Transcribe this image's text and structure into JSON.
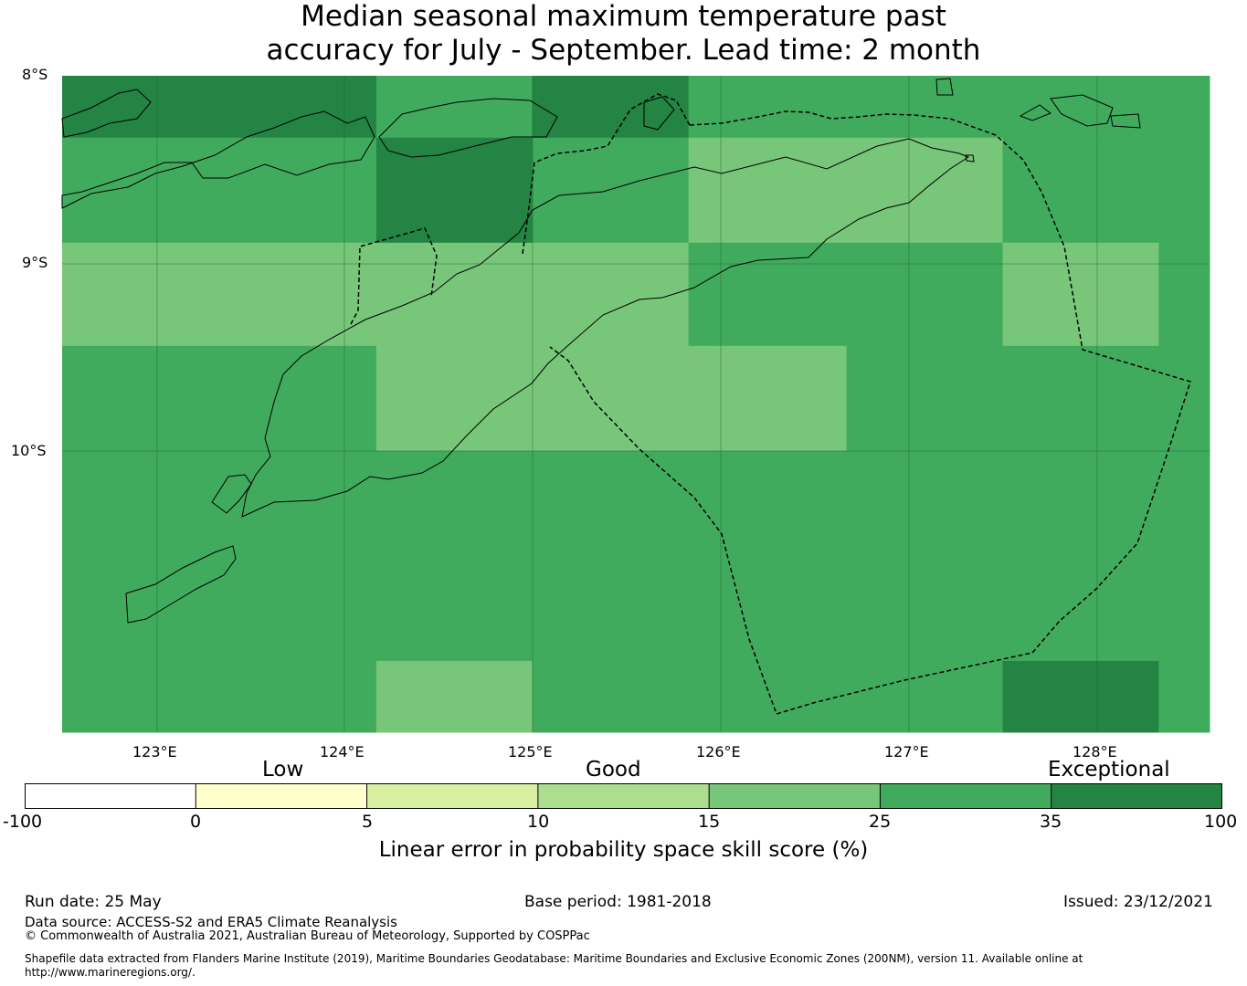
{
  "title": {
    "line1": "Median seasonal maximum temperature past",
    "line2": "accuracy for July - September. Lead time: 2 month"
  },
  "map": {
    "lat_labels": [
      "8°S",
      "9°S",
      "10°S"
    ],
    "lon_labels": [
      "123°E",
      "124°E",
      "125°E",
      "126°E",
      "127°E",
      "128°E"
    ],
    "extent": {
      "lon": [
        122.5,
        128.6
      ],
      "lat": [
        -11.5,
        -8.0
      ]
    },
    "colors": {
      "c15_25": "#78c679",
      "c25_35": "#41ab5d",
      "c35_100": "#238443"
    },
    "grid_cells": [
      {
        "lon": [
          122.5,
          124.17
        ],
        "lat": [
          -8.33,
          -8.0
        ],
        "class": "c35_100"
      },
      {
        "lon": [
          124.17,
          125.0
        ],
        "lat": [
          -8.33,
          -8.0
        ],
        "class": "c25_35"
      },
      {
        "lon": [
          125.0,
          125.83
        ],
        "lat": [
          -8.33,
          -8.0
        ],
        "class": "c35_100"
      },
      {
        "lon": [
          125.83,
          128.6
        ],
        "lat": [
          -8.33,
          -8.0
        ],
        "class": "c25_35"
      },
      {
        "lon": [
          122.5,
          124.17
        ],
        "lat": [
          -8.89,
          -8.33
        ],
        "class": "c25_35"
      },
      {
        "lon": [
          124.17,
          125.0
        ],
        "lat": [
          -8.89,
          -8.33
        ],
        "class": "c35_100"
      },
      {
        "lon": [
          125.0,
          125.83
        ],
        "lat": [
          -8.89,
          -8.33
        ],
        "class": "c25_35"
      },
      {
        "lon": [
          125.83,
          127.5
        ],
        "lat": [
          -8.89,
          -8.33
        ],
        "class": "c15_25"
      },
      {
        "lon": [
          127.5,
          128.6
        ],
        "lat": [
          -8.89,
          -8.33
        ],
        "class": "c25_35"
      },
      {
        "lon": [
          122.5,
          125.83
        ],
        "lat": [
          -9.44,
          -8.89
        ],
        "class": "c15_25"
      },
      {
        "lon": [
          125.83,
          127.5
        ],
        "lat": [
          -9.44,
          -8.89
        ],
        "class": "c25_35"
      },
      {
        "lon": [
          127.5,
          128.33
        ],
        "lat": [
          -9.44,
          -8.89
        ],
        "class": "c15_25"
      },
      {
        "lon": [
          128.33,
          128.6
        ],
        "lat": [
          -9.44,
          -8.89
        ],
        "class": "c25_35"
      },
      {
        "lon": [
          122.5,
          124.17
        ],
        "lat": [
          -10.0,
          -9.44
        ],
        "class": "c25_35"
      },
      {
        "lon": [
          124.17,
          126.67
        ],
        "lat": [
          -10.0,
          -9.44
        ],
        "class": "c15_25"
      },
      {
        "lon": [
          126.67,
          128.6
        ],
        "lat": [
          -10.0,
          -9.44
        ],
        "class": "c25_35"
      },
      {
        "lon": [
          122.5,
          128.6
        ],
        "lat": [
          -11.12,
          -10.0
        ],
        "class": "c25_35"
      },
      {
        "lon": [
          122.5,
          124.17
        ],
        "lat": [
          -11.5,
          -11.12
        ],
        "class": "c25_35"
      },
      {
        "lon": [
          124.17,
          125.0
        ],
        "lat": [
          -11.5,
          -11.12
        ],
        "class": "c15_25"
      },
      {
        "lon": [
          125.0,
          127.5
        ],
        "lat": [
          -11.5,
          -11.12
        ],
        "class": "c25_35"
      },
      {
        "lon": [
          127.5,
          128.33
        ],
        "lat": [
          -11.5,
          -11.12
        ],
        "class": "c35_100"
      },
      {
        "lon": [
          128.33,
          128.6
        ],
        "lat": [
          -11.5,
          -11.12
        ],
        "class": "c25_35"
      }
    ]
  },
  "colorbar": {
    "categories": [
      "Low",
      "Good",
      "Exceptional"
    ],
    "ticks": [
      "-100",
      "0",
      "5",
      "10",
      "15",
      "25",
      "35",
      "100"
    ],
    "segment_colors": [
      "#ffffff",
      "#ffffcc",
      "#d9f0a3",
      "#addd8e",
      "#78c679",
      "#41ab5d",
      "#238443"
    ],
    "label": "Linear error in probability space skill score (%)"
  },
  "footer": {
    "run_date": "Run date: 25 May",
    "base_period": "Base period: 1981-2018",
    "issued": "Issued: 23/12/2021",
    "data_source": "Data source: ACCESS-S2 and ERA5 Climate Reanalysis",
    "copyright": "© Commonwealth of Australia 2021, Australian Bureau of Meteorology, Supported by COSPPac",
    "shapefile_line1": "Shapefile data extracted from Flanders Marine Institute (2019), Maritime Boundaries Geodatabase: Maritime Boundaries and Exclusive Economic Zones (200NM), version 11. Available online at",
    "shapefile_line2": "http://www.marineregions.org/."
  }
}
